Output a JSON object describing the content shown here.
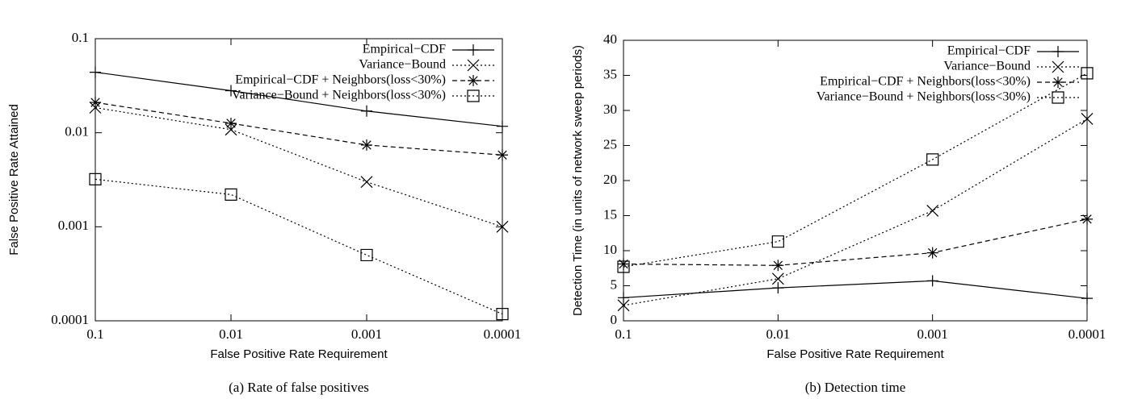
{
  "chart_data": [
    {
      "type": "line",
      "caption": "(a) Rate of false positives",
      "xlabel": "False Positive Rate Requirement",
      "ylabel": "False Positive Rate Attained",
      "x": [
        0.1,
        0.01,
        0.001,
        0.0001
      ],
      "xlim": [
        0.1,
        0.0001
      ],
      "xticks": [
        0.1,
        0.01,
        0.001,
        0.0001
      ],
      "xscale": "log",
      "ylim": [
        0.0001,
        0.1
      ],
      "yticks": [
        0.0001,
        0.001,
        0.01,
        0.1
      ],
      "yscale": "log",
      "legend": "top-right",
      "series": [
        {
          "name": "Empirical−CDF",
          "color": "#000000",
          "style": "solid",
          "marker": "plus",
          "values": [
            0.044,
            0.028,
            0.017,
            0.0117
          ]
        },
        {
          "name": "Variance−Bound",
          "color": "#000000",
          "style": "dotted",
          "marker": "cross",
          "values": [
            0.0185,
            0.0108,
            0.003,
            0.001
          ]
        },
        {
          "name": "Empirical−CDF + Neighbors(loss<30%)",
          "color": "#000000",
          "style": "dashed",
          "marker": "star",
          "values": [
            0.021,
            0.0126,
            0.0074,
            0.0058
          ]
        },
        {
          "name": "Variance−Bound + Neighbors(loss<30%)",
          "color": "#000000",
          "style": "dotted",
          "marker": "square",
          "values": [
            0.0032,
            0.0022,
            0.0005,
            0.000118
          ]
        }
      ]
    },
    {
      "type": "line",
      "caption": "(b) Detection time",
      "xlabel": "False Positive Rate Requirement",
      "ylabel": "Detection Time (in units of network sweep periods)",
      "x": [
        0.1,
        0.01,
        0.001,
        0.0001
      ],
      "xlim": [
        0.1,
        0.0001
      ],
      "xticks": [
        0.1,
        0.01,
        0.001,
        0.0001
      ],
      "xscale": "log",
      "ylim": [
        0,
        40
      ],
      "yticks": [
        0,
        5,
        10,
        15,
        20,
        25,
        30,
        35,
        40
      ],
      "yscale": "linear",
      "legend": "top-right",
      "series": [
        {
          "name": "Empirical−CDF",
          "color": "#000000",
          "style": "solid",
          "marker": "plus",
          "values": [
            3.3,
            4.7,
            5.7,
            3.2
          ]
        },
        {
          "name": "Variance−Bound",
          "color": "#000000",
          "style": "dotted",
          "marker": "cross",
          "values": [
            2.2,
            6.0,
            15.7,
            28.8
          ]
        },
        {
          "name": "Empirical−CDF + Neighbors(loss<30%)",
          "color": "#000000",
          "style": "dashed",
          "marker": "star",
          "values": [
            8.1,
            7.9,
            9.7,
            14.5
          ]
        },
        {
          "name": "Variance−Bound + Neighbors(loss<30%)",
          "color": "#000000",
          "style": "dotted",
          "marker": "square",
          "values": [
            7.7,
            11.3,
            23.0,
            35.3
          ]
        }
      ]
    }
  ]
}
